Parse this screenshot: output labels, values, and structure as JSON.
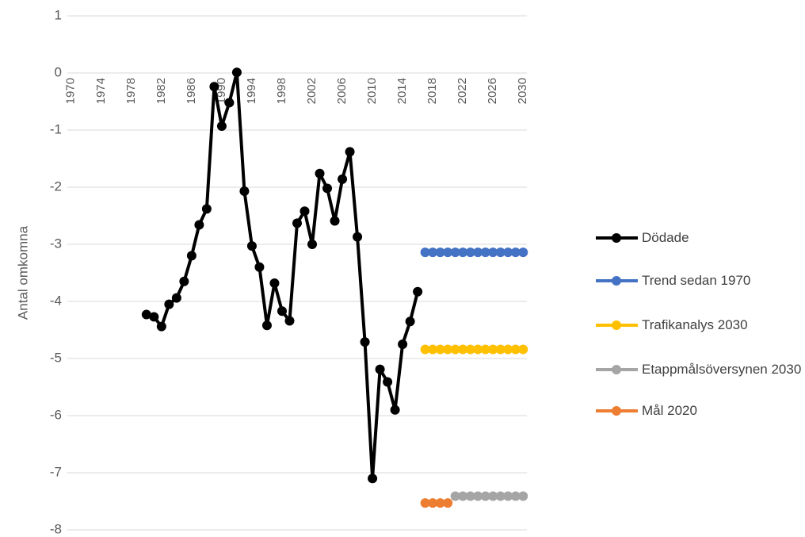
{
  "chart_data": {
    "type": "line",
    "y_label": "Antal omkomna",
    "ylim": [
      -8,
      1
    ],
    "yticks": [
      -8,
      -7,
      -6,
      -5,
      -4,
      -3,
      -2,
      -1,
      0,
      1
    ],
    "grid": true,
    "legend": "right",
    "categories": [
      "1970",
      null,
      null,
      null,
      "1974",
      null,
      null,
      null,
      "1978",
      null,
      null,
      null,
      "1982",
      null,
      null,
      null,
      "1986",
      null,
      null,
      null,
      "1990",
      null,
      null,
      null,
      "1994",
      null,
      null,
      null,
      "1998",
      null,
      null,
      null,
      "2002",
      null,
      null,
      null,
      "2006",
      null,
      null,
      null,
      "2010",
      null,
      null,
      null,
      "2014",
      null,
      null,
      null,
      "2018",
      null,
      null,
      null,
      "2022",
      null,
      null,
      null,
      "2026",
      null,
      null,
      null,
      "2030"
    ],
    "series": [
      {
        "name": "Dödade",
        "color": "#000000",
        "values": [
          null,
          null,
          null,
          null,
          null,
          null,
          null,
          null,
          null,
          null,
          -4.23,
          -4.27,
          -4.44,
          -4.05,
          -3.94,
          -3.65,
          -3.2,
          -2.66,
          -2.38,
          -0.24,
          -0.93,
          -0.52,
          0.01,
          -2.07,
          -3.03,
          -3.4,
          -4.42,
          -3.68,
          -4.17,
          -4.34,
          -2.63,
          -2.42,
          -3.0,
          -1.76,
          -2.02,
          -2.59,
          -1.86,
          -1.38,
          -2.87,
          -4.71,
          -7.1,
          -5.19,
          -5.41,
          -5.9,
          -4.75,
          -4.35,
          -3.83,
          null,
          null,
          null,
          null,
          null,
          null,
          null,
          null,
          null,
          null,
          null,
          null,
          null,
          null
        ]
      },
      {
        "name": "Trend sedan 1970",
        "color": "#4472c4",
        "values": [
          null,
          null,
          null,
          null,
          null,
          null,
          null,
          null,
          null,
          null,
          null,
          null,
          null,
          null,
          null,
          null,
          null,
          null,
          null,
          null,
          null,
          null,
          null,
          null,
          null,
          null,
          null,
          null,
          null,
          null,
          null,
          null,
          null,
          null,
          null,
          null,
          null,
          null,
          null,
          null,
          null,
          null,
          null,
          null,
          null,
          null,
          null,
          -3.14,
          -3.14,
          -3.14,
          -3.14,
          -3.14,
          -3.14,
          -3.14,
          -3.14,
          -3.14,
          -3.14,
          -3.14,
          -3.14,
          -3.14,
          -3.14
        ]
      },
      {
        "name": "Trafikanalys 2030",
        "color": "#ffc000",
        "values": [
          null,
          null,
          null,
          null,
          null,
          null,
          null,
          null,
          null,
          null,
          null,
          null,
          null,
          null,
          null,
          null,
          null,
          null,
          null,
          null,
          null,
          null,
          null,
          null,
          null,
          null,
          null,
          null,
          null,
          null,
          null,
          null,
          null,
          null,
          null,
          null,
          null,
          null,
          null,
          null,
          null,
          null,
          null,
          null,
          null,
          null,
          null,
          -4.84,
          -4.84,
          -4.84,
          -4.84,
          -4.84,
          -4.84,
          -4.84,
          -4.84,
          -4.84,
          -4.84,
          -4.84,
          -4.84,
          -4.84,
          -4.84
        ]
      },
      {
        "name": "Etappmålsöversynen 2030",
        "color": "#a5a5a5",
        "values": [
          null,
          null,
          null,
          null,
          null,
          null,
          null,
          null,
          null,
          null,
          null,
          null,
          null,
          null,
          null,
          null,
          null,
          null,
          null,
          null,
          null,
          null,
          null,
          null,
          null,
          null,
          null,
          null,
          null,
          null,
          null,
          null,
          null,
          null,
          null,
          null,
          null,
          null,
          null,
          null,
          null,
          null,
          null,
          null,
          null,
          null,
          null,
          null,
          null,
          null,
          null,
          -7.41,
          -7.41,
          -7.41,
          -7.41,
          -7.41,
          -7.41,
          -7.41,
          -7.41,
          -7.41,
          -7.41
        ]
      },
      {
        "name": "Mål 2020",
        "color": "#ed7d31",
        "values": [
          null,
          null,
          null,
          null,
          null,
          null,
          null,
          null,
          null,
          null,
          null,
          null,
          null,
          null,
          null,
          null,
          null,
          null,
          null,
          null,
          null,
          null,
          null,
          null,
          null,
          null,
          null,
          null,
          null,
          null,
          null,
          null,
          null,
          null,
          null,
          null,
          null,
          null,
          null,
          null,
          null,
          null,
          null,
          null,
          null,
          null,
          null,
          -7.53,
          -7.53,
          -7.53,
          -7.53,
          null,
          null,
          null,
          null,
          null,
          null,
          null,
          null,
          null,
          null
        ]
      }
    ]
  }
}
